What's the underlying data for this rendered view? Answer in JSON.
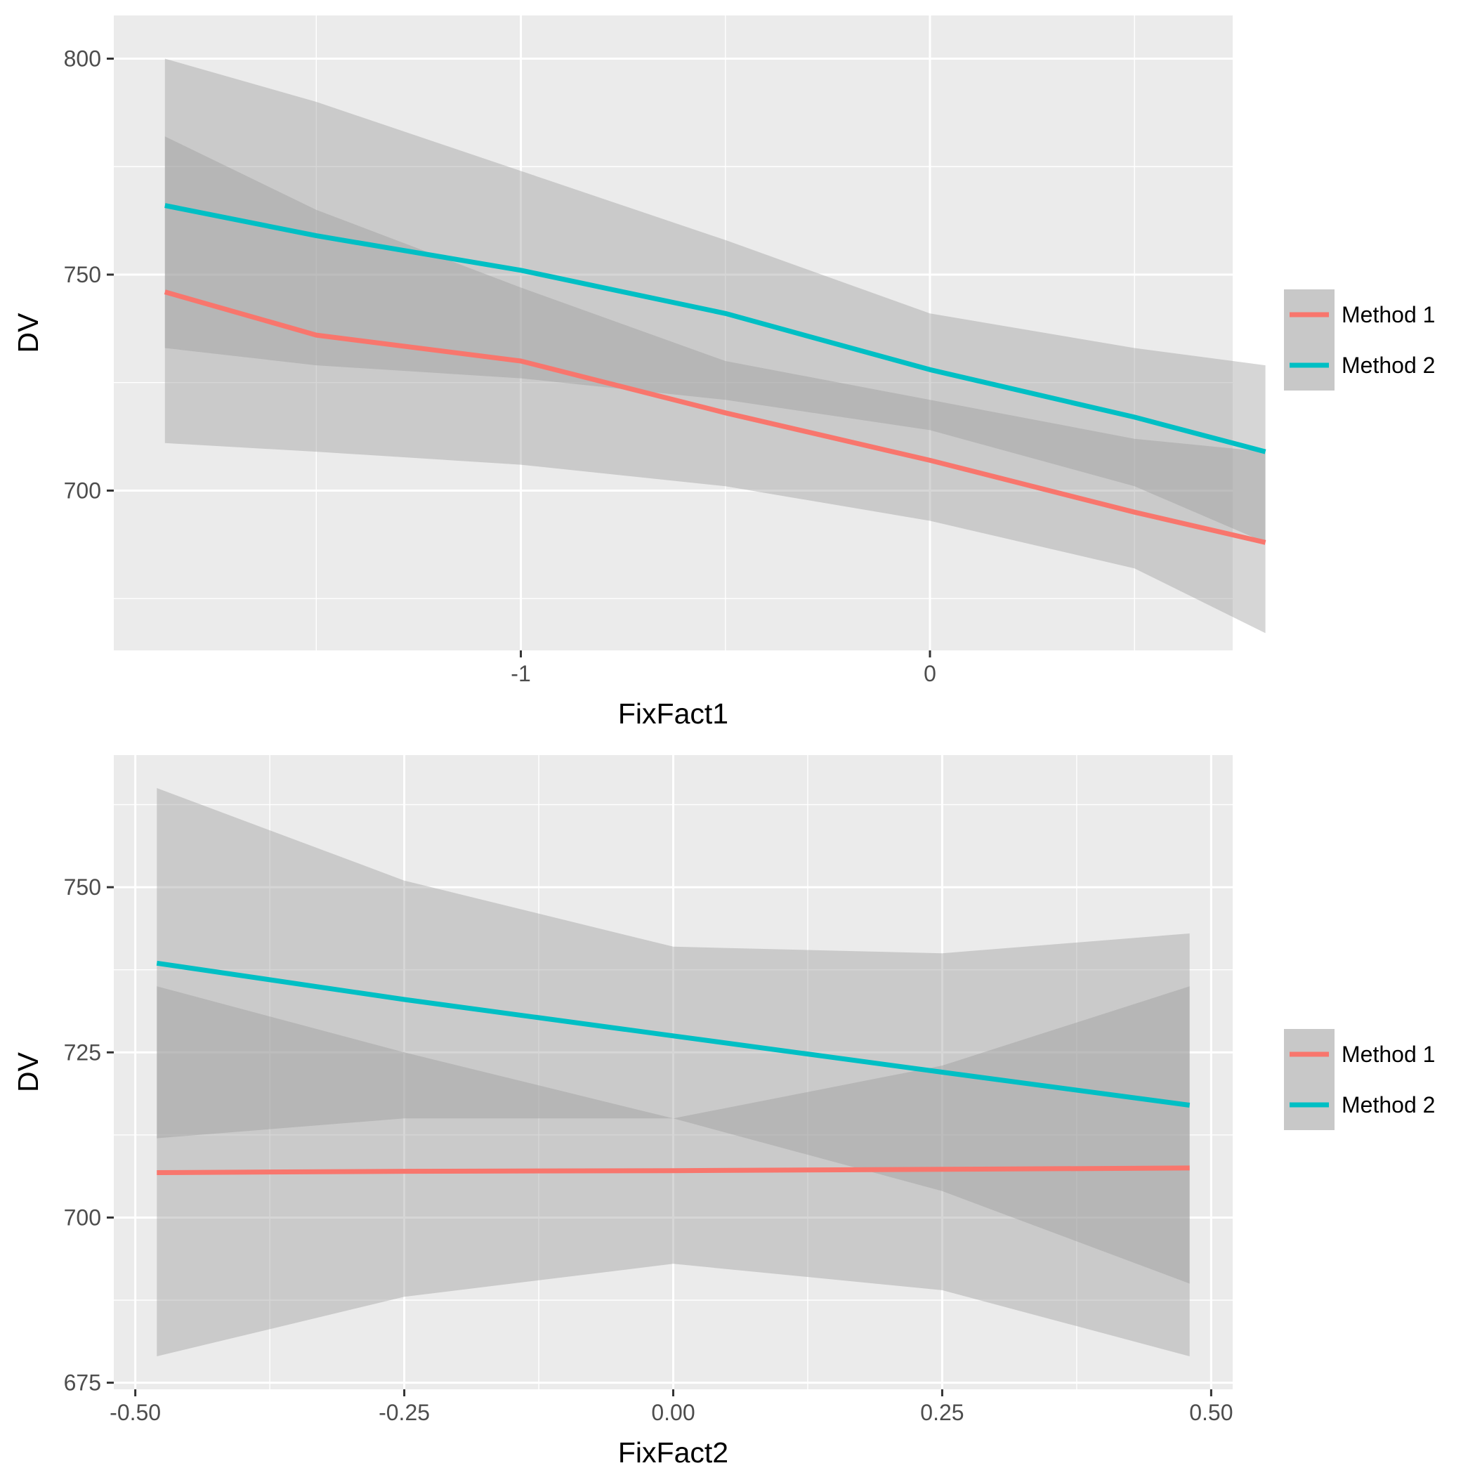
{
  "chart_data": [
    {
      "type": "line",
      "xlabel": "FixFact1",
      "ylabel": "DV",
      "xlim": [
        -1.995,
        0.74
      ],
      "ylim": [
        663,
        810
      ],
      "x_ticks": [
        -1,
        0
      ],
      "x_tick_labels": [
        "-1",
        "0"
      ],
      "x_minor_ticks": [
        -1.5,
        -0.5,
        0.5
      ],
      "y_ticks": [
        700,
        750,
        800
      ],
      "y_tick_labels": [
        "700",
        "750",
        "800"
      ],
      "y_minor_ticks": [
        675,
        725,
        775
      ],
      "grid": true,
      "legend_placement": "right",
      "legend": [
        "Method 1",
        "Method 2"
      ],
      "series": [
        {
          "name": "Method 1",
          "color": "#F8766D",
          "x": [
            -1.87,
            -1.5,
            -1.0,
            -0.5,
            0.0,
            0.5,
            0.82
          ],
          "y": [
            746,
            736,
            730,
            718,
            707,
            695,
            688
          ],
          "ci_lower": [
            733,
            729,
            726,
            721,
            714,
            701,
            688
          ],
          "ci_upper": [
            782,
            765,
            747,
            730,
            721,
            712,
            709
          ]
        },
        {
          "name": "Method 2",
          "color": "#00BFC4",
          "x": [
            -1.87,
            -1.5,
            -1.0,
            -0.5,
            0.0,
            0.5,
            0.82
          ],
          "y": [
            766,
            759,
            751,
            741,
            728,
            717,
            709
          ],
          "ci_lower": [
            711,
            709,
            706,
            701,
            693,
            682,
            667
          ],
          "ci_upper": [
            800,
            790,
            774,
            758,
            741,
            733,
            729
          ]
        }
      ]
    },
    {
      "type": "line",
      "xlabel": "FixFact2",
      "ylabel": "DV",
      "xlim": [
        -0.52,
        0.52
      ],
      "ylim": [
        674,
        770
      ],
      "x_ticks": [
        -0.5,
        -0.25,
        0.0,
        0.25,
        0.5
      ],
      "x_tick_labels": [
        "-0.50",
        "-0.25",
        "0.00",
        "0.25",
        "0.50"
      ],
      "x_minor_ticks": [
        -0.375,
        -0.125,
        0.125,
        0.375
      ],
      "y_ticks": [
        675,
        700,
        725,
        750
      ],
      "y_tick_labels": [
        "675",
        "700",
        "725",
        "750"
      ],
      "y_minor_ticks": [
        687.5,
        712.5,
        737.5,
        762.5
      ],
      "grid": true,
      "legend_placement": "right",
      "legend": [
        "Method 1",
        "Method 2"
      ],
      "series": [
        {
          "name": "Method 1",
          "color": "#F8766D",
          "x": [
            -0.48,
            -0.25,
            0.0,
            0.25,
            0.48
          ],
          "y": [
            706.8,
            707.0,
            707.1,
            707.3,
            707.5
          ],
          "ci_lower": [
            679,
            688,
            693,
            689,
            679
          ],
          "ci_upper": [
            735,
            725,
            715,
            723,
            735
          ]
        },
        {
          "name": "Method 2",
          "color": "#00BFC4",
          "x": [
            -0.48,
            -0.25,
            0.0,
            0.25,
            0.48
          ],
          "y": [
            738.5,
            733,
            727.5,
            722,
            717
          ],
          "ci_lower": [
            712,
            715,
            715,
            704,
            690
          ],
          "ci_upper": [
            765,
            751,
            741,
            740,
            743
          ]
        }
      ]
    }
  ]
}
